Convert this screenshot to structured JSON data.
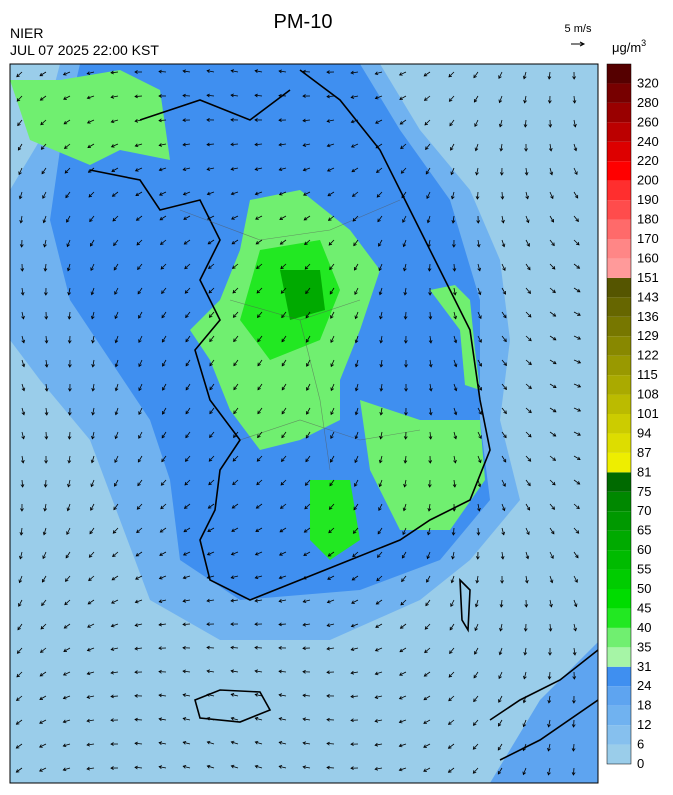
{
  "header": {
    "title": "PM-10",
    "agency": "NIER",
    "timestamp": "JUL 07 2025 22:00 KST"
  },
  "wind_scale": {
    "label": "5 m/s"
  },
  "colorbar": {
    "unit": "μg/m",
    "unit_power": "3",
    "labels": [
      "0",
      "6",
      "12",
      "18",
      "24",
      "31",
      "35",
      "40",
      "45",
      "50",
      "55",
      "60",
      "65",
      "70",
      "75",
      "81",
      "87",
      "94",
      "101",
      "108",
      "115",
      "122",
      "129",
      "136",
      "143",
      "151",
      "160",
      "170",
      "180",
      "190",
      "200",
      "220",
      "240",
      "260",
      "280",
      "320"
    ],
    "colors": [
      "#9acdea",
      "#86c0ee",
      "#70b2f0",
      "#5ea4f0",
      "#3f8ff0",
      "#a6f5a6",
      "#70ef70",
      "#22e822",
      "#00dc00",
      "#00cc00",
      "#00bb00",
      "#00aa00",
      "#009900",
      "#008800",
      "#006a00",
      "#eeee00",
      "#dddd00",
      "#cccc00",
      "#bbbb00",
      "#aaaa00",
      "#999900",
      "#888800",
      "#777700",
      "#666600",
      "#555500",
      "#ff9a9a",
      "#ff8686",
      "#ff6a6a",
      "#ff4c4c",
      "#ff2e2e",
      "#ff0000",
      "#dd0000",
      "#bb0000",
      "#990000",
      "#770000",
      "#550000"
    ]
  }
}
